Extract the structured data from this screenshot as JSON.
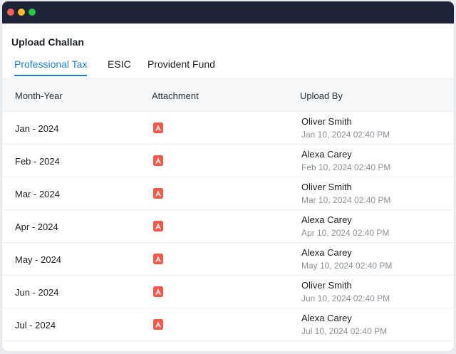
{
  "window": {
    "controls": [
      "close",
      "minimize",
      "maximize"
    ]
  },
  "page": {
    "title": "Upload Challan"
  },
  "tabs": [
    {
      "label": "Professional Tax",
      "active": true
    },
    {
      "label": "ESIC",
      "active": false
    },
    {
      "label": "Provident Fund",
      "active": false
    }
  ],
  "table": {
    "headers": [
      "Month-Year",
      "Attachment",
      "Upload By"
    ],
    "rows": [
      {
        "month": "Jan - 2024",
        "attachment_icon": "pdf-icon",
        "uploader": "Oliver Smith",
        "time": "Jan 10, 2024 02:40 PM"
      },
      {
        "month": "Feb - 2024",
        "attachment_icon": "pdf-icon",
        "uploader": "Alexa Carey",
        "time": "Feb 10, 2024 02:40 PM"
      },
      {
        "month": "Mar - 2024",
        "attachment_icon": "pdf-icon",
        "uploader": "Oliver Smith",
        "time": "Mar 10, 2024 02:40 PM"
      },
      {
        "month": "Apr - 2024",
        "attachment_icon": "pdf-icon",
        "uploader": "Alexa Carey",
        "time": "Apr 10, 2024 02:40 PM"
      },
      {
        "month": "May - 2024",
        "attachment_icon": "pdf-icon",
        "uploader": "Alexa Carey",
        "time": "May 10, 2024 02:40 PM"
      },
      {
        "month": "Jun - 2024",
        "attachment_icon": "pdf-icon",
        "uploader": "Oliver Smith",
        "time": "Jun 10, 2024 02:40 PM"
      },
      {
        "month": "Jul - 2024",
        "attachment_icon": "pdf-icon",
        "uploader": "Alexa Carey",
        "time": "Jul 10, 2024 02:40 PM"
      }
    ]
  },
  "colors": {
    "titlebar": "#1d2437",
    "accent": "#1f7fd1",
    "pdf": "#ef5a4c"
  }
}
